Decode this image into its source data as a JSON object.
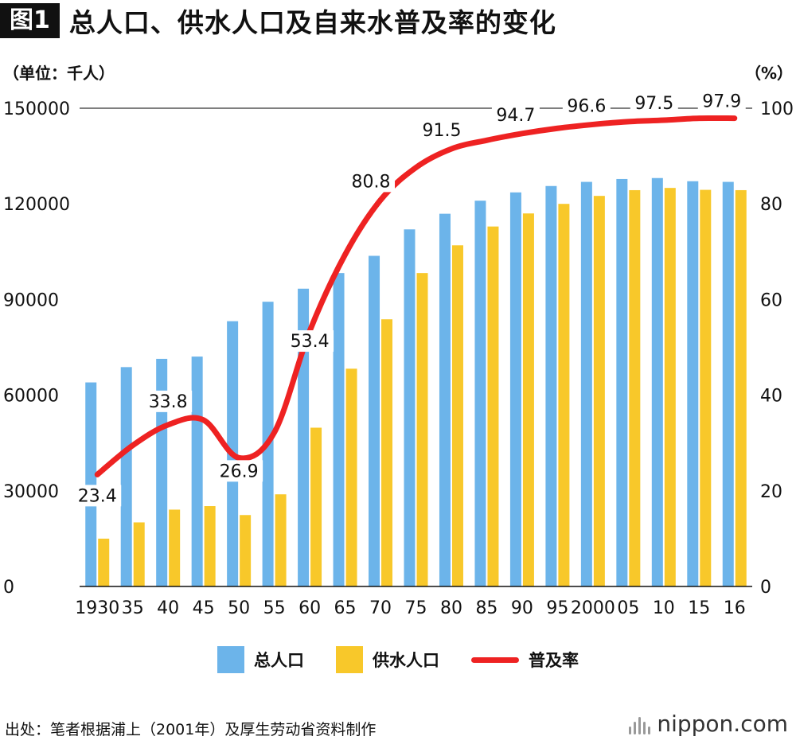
{
  "header": {
    "fig_tag": "图1",
    "title": "总人口、供水人口及自来水普及率的变化"
  },
  "units": {
    "left": "（单位：千人）",
    "right": "（%）"
  },
  "chart_data": {
    "type": "bar+line",
    "title": "总人口、供水人口及自来水普及率的变化",
    "categories": [
      "1930",
      "35",
      "40",
      "45",
      "50",
      "55",
      "60",
      "65",
      "70",
      "75",
      "80",
      "85",
      "90",
      "95",
      "2000",
      "05",
      "10",
      "15",
      "16"
    ],
    "left_axis": {
      "label": "（单位：千人）",
      "ylim": [
        0,
        150000
      ],
      "ticks": [
        "0",
        "30000",
        "60000",
        "90000",
        "120000",
        "150000"
      ]
    },
    "right_axis": {
      "label": "（%）",
      "ylim": [
        0,
        100
      ],
      "ticks": [
        "0",
        "20",
        "40",
        "60",
        "80",
        "100"
      ]
    },
    "series": [
      {
        "name": "总人口",
        "type": "bar",
        "axis": "left",
        "color": "#6cb4ea",
        "values": [
          64000,
          68800,
          71400,
          72100,
          83200,
          89300,
          93400,
          98300,
          103700,
          112000,
          116900,
          121000,
          123600,
          125600,
          126900,
          127800,
          128100,
          127100,
          126900
        ]
      },
      {
        "name": "供水人口",
        "type": "bar",
        "axis": "left",
        "color": "#f8c82a",
        "values": [
          15000,
          20100,
          24100,
          25200,
          22400,
          28900,
          49800,
          68300,
          83800,
          98300,
          107000,
          112900,
          117000,
          120000,
          122500,
          124300,
          125000,
          124400,
          124300
        ]
      },
      {
        "name": "普及率",
        "type": "line",
        "axis": "right",
        "color": "#ee2222",
        "values": [
          23.4,
          29.5,
          33.8,
          34.8,
          26.9,
          32.2,
          53.4,
          69.4,
          80.8,
          87.6,
          91.5,
          93.3,
          94.7,
          95.8,
          96.6,
          97.2,
          97.5,
          97.9,
          97.9
        ]
      }
    ],
    "data_labels": [
      {
        "index": 0,
        "text": "23.4"
      },
      {
        "index": 2,
        "text": "33.8"
      },
      {
        "index": 4,
        "text": "26.9"
      },
      {
        "index": 6,
        "text": "53.4"
      },
      {
        "index": 8,
        "text": "80.8"
      },
      {
        "index": 10,
        "text": "91.5"
      },
      {
        "index": 12,
        "text": "94.7"
      },
      {
        "index": 14,
        "text": "96.6"
      },
      {
        "index": 16,
        "text": "97.5"
      },
      {
        "index": 18,
        "text": "97.9"
      }
    ],
    "legend": [
      "总人口",
      "供水人口",
      "普及率"
    ],
    "legend_position": "bottom-center",
    "grid": "top line only"
  },
  "footer": {
    "source": "出处：笔者根据浦上（2001年）及厚生劳动省资料制作",
    "brand": "nippon.com"
  }
}
